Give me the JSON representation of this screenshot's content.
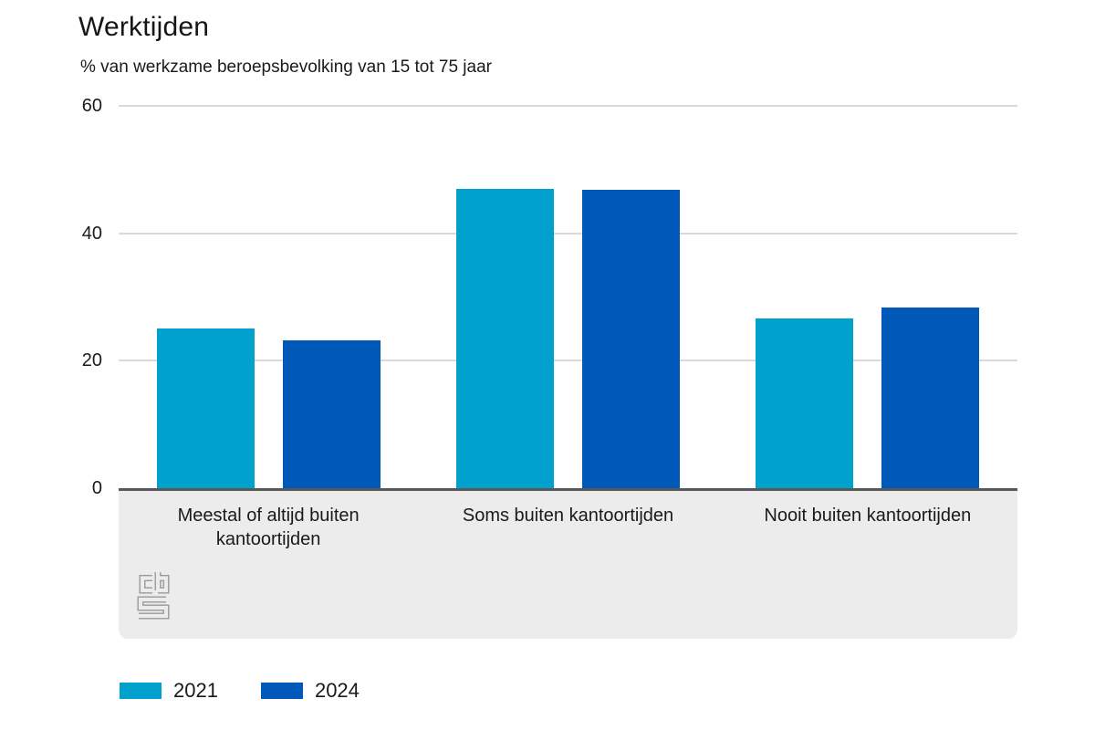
{
  "title": "Werktijden",
  "subtitle": "% van werkzame beroepsbevolking van 15 tot 75 jaar",
  "colors": {
    "series_2021": "#00a1cd",
    "series_2024": "#0058b8",
    "axis_line": "#58595b",
    "gridline": "#d9d9d9",
    "panel_background": "#ececec",
    "text": "#1a1a1a",
    "logo": "#9a9a9a"
  },
  "chart_data": {
    "type": "bar",
    "title": "Werktijden",
    "subtitle": "% van werkzame beroepsbevolking van 15 tot 75 jaar",
    "categories": [
      "Meestal of altijd buiten kantoortijden",
      "Soms buiten kantoortijden",
      "Nooit buiten kantoortijden"
    ],
    "series": [
      {
        "name": "2021",
        "color": "#00a1cd",
        "values": [
          25.0,
          47.0,
          26.6
        ]
      },
      {
        "name": "2024",
        "color": "#0058b8",
        "values": [
          23.2,
          46.8,
          28.4
        ]
      }
    ],
    "xlabel": "",
    "ylabel": "",
    "ylim": [
      0,
      60
    ],
    "yticks": [
      0,
      20,
      40,
      60
    ],
    "grid": true,
    "legend_position": "bottom-left",
    "source_logo": "cbs"
  },
  "legend": [
    {
      "label": "2021",
      "color": "#00a1cd"
    },
    {
      "label": "2024",
      "color": "#0058b8"
    }
  ]
}
